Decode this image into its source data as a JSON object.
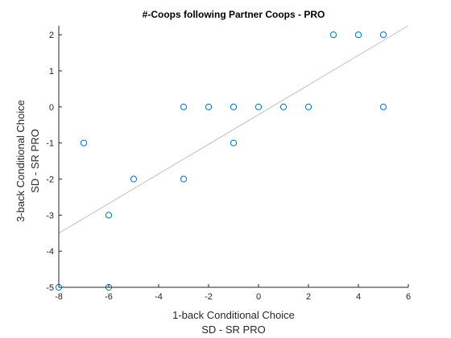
{
  "chart_data": {
    "type": "scatter",
    "title": "#-Coops following Partner Coops - PRO",
    "xlabel": [
      "1-back Conditional Choice",
      "SD - SR PRO"
    ],
    "ylabel": [
      "3-back Conditional Choice",
      "SD - SR PRO"
    ],
    "xlim": [
      -8,
      6
    ],
    "ylim": [
      -5,
      2.25
    ],
    "xticks": [
      -8,
      -6,
      -4,
      -2,
      0,
      2,
      4,
      6
    ],
    "yticks": [
      -5,
      -4,
      -3,
      -2,
      -1,
      0,
      1,
      2
    ],
    "xtick_labels": [
      "-8",
      "-6",
      "-4",
      "-2",
      "0",
      "2",
      "4",
      "6"
    ],
    "ytick_labels": [
      "-5",
      "-4",
      "-3",
      "-2",
      "-1",
      "0",
      "1",
      "2"
    ],
    "grid": false,
    "marker_color": "#0072BD",
    "fit_line_color": "#c0c0c0",
    "points": [
      {
        "x": -8,
        "y": -5
      },
      {
        "x": -7,
        "y": -1
      },
      {
        "x": -6,
        "y": -3
      },
      {
        "x": -6,
        "y": -5
      },
      {
        "x": -5,
        "y": -2
      },
      {
        "x": -3,
        "y": 0
      },
      {
        "x": -3,
        "y": -2
      },
      {
        "x": -2,
        "y": 0
      },
      {
        "x": -1,
        "y": 0
      },
      {
        "x": -1,
        "y": -1
      },
      {
        "x": 0,
        "y": 0
      },
      {
        "x": 1,
        "y": 0
      },
      {
        "x": 2,
        "y": 0
      },
      {
        "x": 3,
        "y": 2
      },
      {
        "x": 4,
        "y": 2
      },
      {
        "x": 5,
        "y": 2
      },
      {
        "x": 5,
        "y": 0
      }
    ],
    "fit_line": {
      "x": [
        -8,
        6
      ],
      "y": [
        -3.5,
        2.25
      ]
    }
  }
}
